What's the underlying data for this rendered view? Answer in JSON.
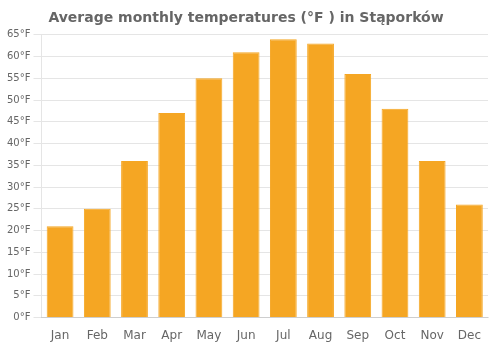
{
  "chart_data": {
    "type": "bar",
    "title": "Average monthly temperatures (°F ) in Stąporków",
    "categories": [
      "Jan",
      "Feb",
      "Mar",
      "Apr",
      "May",
      "Jun",
      "Jul",
      "Aug",
      "Sep",
      "Oct",
      "Nov",
      "Dec"
    ],
    "values": [
      21,
      25,
      36,
      47,
      55,
      61,
      64,
      63,
      56,
      48,
      36,
      26
    ],
    "color": "#F5A623",
    "ylim": [
      0,
      65
    ],
    "yticks": [
      {
        "value": 0,
        "label": "0°F"
      },
      {
        "value": 5,
        "label": "5°F"
      },
      {
        "value": 10,
        "label": "10°F"
      },
      {
        "value": 15,
        "label": "15°F"
      },
      {
        "value": 20,
        "label": "20°F"
      },
      {
        "value": 25,
        "label": "25°F"
      },
      {
        "value": 30,
        "label": "30°F"
      },
      {
        "value": 35,
        "label": "35°F"
      },
      {
        "value": 40,
        "label": "40°F"
      },
      {
        "value": 45,
        "label": "45°F"
      },
      {
        "value": 50,
        "label": "50°F"
      },
      {
        "value": 55,
        "label": "55°F"
      },
      {
        "value": 60,
        "label": "60°F"
      },
      {
        "value": 65,
        "label": "65°F"
      }
    ],
    "grid": true
  }
}
